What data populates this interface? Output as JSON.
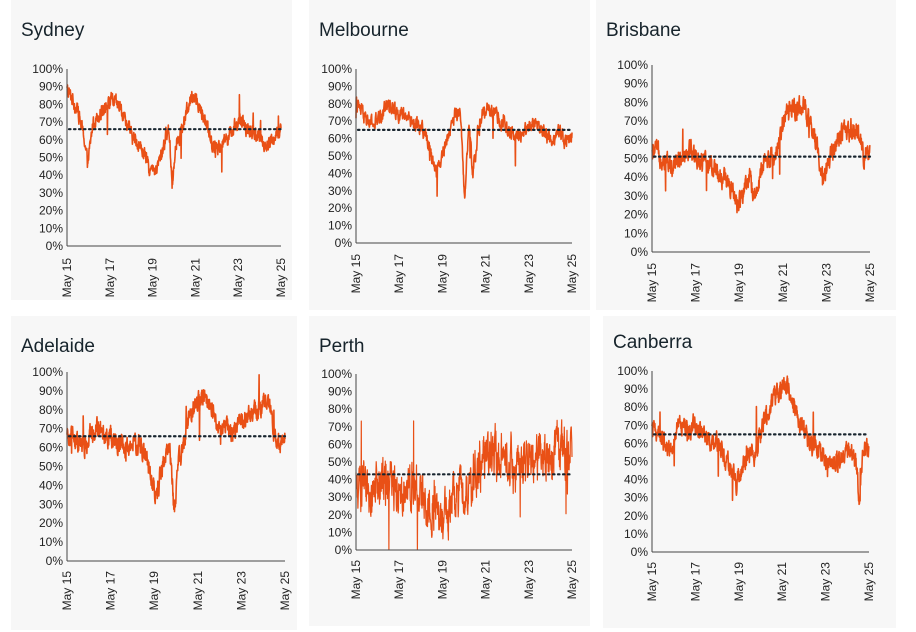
{
  "colors": {
    "series": "#e8470a",
    "series_light": "#f0874a",
    "reference": "#1a2630",
    "axis": "#444444",
    "panel_bg": "#f7f7f7"
  },
  "chart_data": [
    {
      "type": "line",
      "title": "Sydney",
      "ylim": [
        0,
        100
      ],
      "yticks": [
        "0%",
        "10%",
        "20%",
        "30%",
        "40%",
        "50%",
        "60%",
        "70%",
        "80%",
        "90%",
        "100%"
      ],
      "xlim": [
        2015.38,
        2025.38
      ],
      "xticks": [
        "May 15",
        "May 17",
        "May 19",
        "May 21",
        "May 23",
        "May 25"
      ],
      "reference_value": 66,
      "volatility": 3,
      "series": [
        {
          "x": [
            2015.38,
            2015.6,
            2015.9,
            2016.2,
            2016.35,
            2016.6,
            2016.9,
            2017.2,
            2017.5,
            2017.8,
            2018.1,
            2018.4,
            2018.7,
            2019.0,
            2019.2,
            2019.5,
            2019.8,
            2020.0,
            2020.15,
            2020.3,
            2020.45,
            2020.7,
            2020.9,
            2021.1,
            2021.3,
            2021.5,
            2021.7,
            2021.9,
            2022.1,
            2022.3,
            2022.6,
            2022.9,
            2023.2,
            2023.5,
            2023.8,
            2024.1,
            2024.4,
            2024.7,
            2025.0,
            2025.38
          ],
          "values": [
            88,
            84,
            76,
            60,
            46,
            70,
            75,
            80,
            82,
            79,
            72,
            62,
            58,
            52,
            44,
            41,
            52,
            62,
            66,
            34,
            58,
            64,
            72,
            82,
            86,
            80,
            75,
            70,
            60,
            55,
            58,
            62,
            68,
            70,
            66,
            64,
            62,
            56,
            60,
            65
          ]
        }
      ]
    },
    {
      "type": "line",
      "title": "Melbourne",
      "ylim": [
        0,
        100
      ],
      "yticks": [
        "0%",
        "10%",
        "20%",
        "30%",
        "40%",
        "50%",
        "60%",
        "70%",
        "80%",
        "90%",
        "100%"
      ],
      "xlim": [
        2015.38,
        2025.38
      ],
      "xticks": [
        "May 15",
        "May 17",
        "May 19",
        "May 21",
        "May 23",
        "May 25"
      ],
      "reference_value": 65,
      "volatility": 3,
      "series": [
        {
          "x": [
            2015.38,
            2015.6,
            2015.9,
            2016.2,
            2016.5,
            2016.8,
            2017.1,
            2017.4,
            2017.7,
            2018.0,
            2018.3,
            2018.6,
            2018.9,
            2019.1,
            2019.3,
            2019.6,
            2019.9,
            2020.1,
            2020.25,
            2020.4,
            2020.6,
            2020.8,
            2021.0,
            2021.2,
            2021.5,
            2021.8,
            2022.1,
            2022.4,
            2022.7,
            2023.0,
            2023.3,
            2023.6,
            2023.9,
            2024.2,
            2024.5,
            2024.8,
            2025.1,
            2025.38
          ],
          "values": [
            80,
            76,
            70,
            68,
            72,
            80,
            78,
            74,
            72,
            70,
            68,
            62,
            50,
            42,
            48,
            60,
            72,
            75,
            72,
            22,
            66,
            40,
            62,
            72,
            78,
            74,
            70,
            65,
            60,
            62,
            66,
            70,
            65,
            62,
            60,
            64,
            58,
            62
          ]
        }
      ]
    },
    {
      "type": "line",
      "title": "Brisbane",
      "ylim": [
        0,
        100
      ],
      "yticks": [
        "0%",
        "10%",
        "20%",
        "30%",
        "40%",
        "50%",
        "60%",
        "70%",
        "80%",
        "90%",
        "100%"
      ],
      "xlim": [
        2015.38,
        2025.38
      ],
      "xticks": [
        "May 15",
        "May 17",
        "May 19",
        "May 21",
        "May 23",
        "May 25"
      ],
      "reference_value": 51,
      "volatility": 4,
      "series": [
        {
          "x": [
            2015.38,
            2015.6,
            2015.9,
            2016.2,
            2016.5,
            2016.8,
            2017.1,
            2017.4,
            2017.7,
            2018.0,
            2018.3,
            2018.6,
            2018.9,
            2019.1,
            2019.3,
            2019.6,
            2019.9,
            2020.1,
            2020.3,
            2020.5,
            2020.8,
            2021.0,
            2021.2,
            2021.5,
            2021.8,
            2022.0,
            2022.3,
            2022.6,
            2022.9,
            2023.1,
            2023.3,
            2023.6,
            2023.9,
            2024.2,
            2024.5,
            2024.7,
            2024.9,
            2025.1,
            2025.38
          ],
          "values": [
            52,
            54,
            50,
            46,
            50,
            52,
            56,
            50,
            48,
            46,
            44,
            40,
            36,
            30,
            26,
            32,
            40,
            28,
            38,
            46,
            52,
            50,
            60,
            72,
            76,
            78,
            80,
            68,
            58,
            48,
            40,
            54,
            60,
            64,
            62,
            66,
            64,
            50,
            52
          ]
        }
      ]
    },
    {
      "type": "line",
      "title": "Adelaide",
      "ylim": [
        0,
        100
      ],
      "yticks": [
        "0%",
        "10%",
        "20%",
        "30%",
        "40%",
        "50%",
        "60%",
        "70%",
        "80%",
        "90%",
        "100%"
      ],
      "xlim": [
        2015.38,
        2025.38
      ],
      "xticks": [
        "May 15",
        "May 17",
        "May 19",
        "May 21",
        "May 23",
        "May 25"
      ],
      "reference_value": 66,
      "volatility": 4,
      "series": [
        {
          "x": [
            2015.38,
            2015.6,
            2015.9,
            2016.2,
            2016.5,
            2016.8,
            2017.1,
            2017.4,
            2017.7,
            2018.0,
            2018.3,
            2018.6,
            2018.9,
            2019.1,
            2019.3,
            2019.5,
            2019.7,
            2019.9,
            2020.1,
            2020.3,
            2020.5,
            2020.7,
            2020.9,
            2021.1,
            2021.4,
            2021.7,
            2022.0,
            2022.3,
            2022.6,
            2022.9,
            2023.2,
            2023.5,
            2023.8,
            2024.1,
            2024.4,
            2024.7,
            2024.9,
            2025.1,
            2025.38
          ],
          "values": [
            64,
            66,
            62,
            60,
            68,
            70,
            68,
            66,
            62,
            60,
            60,
            62,
            58,
            50,
            40,
            34,
            48,
            55,
            60,
            26,
            52,
            60,
            72,
            80,
            84,
            86,
            80,
            74,
            70,
            68,
            72,
            76,
            78,
            80,
            82,
            80,
            66,
            62,
            64
          ]
        }
      ]
    },
    {
      "type": "line",
      "title": "Perth",
      "ylim": [
        0,
        100
      ],
      "yticks": [
        "0%",
        "10%",
        "20%",
        "30%",
        "40%",
        "50%",
        "60%",
        "70%",
        "80%",
        "90%",
        "100%"
      ],
      "xlim": [
        2015.38,
        2025.38
      ],
      "xticks": [
        "May 15",
        "May 17",
        "May 19",
        "May 21",
        "May 23",
        "May 25"
      ],
      "reference_value": 43,
      "volatility": 10,
      "series": [
        {
          "x": [
            2015.38,
            2015.7,
            2016.0,
            2016.3,
            2016.6,
            2016.9,
            2017.2,
            2017.5,
            2017.8,
            2018.1,
            2018.4,
            2018.7,
            2019.0,
            2019.3,
            2019.6,
            2019.9,
            2020.2,
            2020.5,
            2020.8,
            2021.1,
            2021.4,
            2021.7,
            2022.0,
            2022.3,
            2022.6,
            2022.9,
            2023.2,
            2023.5,
            2023.8,
            2024.1,
            2024.4,
            2024.7,
            2025.0,
            2025.38
          ],
          "values": [
            36,
            34,
            30,
            36,
            40,
            38,
            36,
            34,
            38,
            40,
            30,
            26,
            24,
            22,
            20,
            28,
            36,
            34,
            40,
            46,
            54,
            58,
            56,
            52,
            48,
            44,
            46,
            50,
            52,
            54,
            56,
            58,
            56,
            58
          ]
        }
      ]
    },
    {
      "type": "line",
      "title": "Canberra",
      "ylim": [
        0,
        100
      ],
      "yticks": [
        "0%",
        "10%",
        "20%",
        "30%",
        "40%",
        "50%",
        "60%",
        "70%",
        "80%",
        "90%",
        "100%"
      ],
      "xlim": [
        2015.38,
        2025.38
      ],
      "xticks": [
        "May 15",
        "May 17",
        "May 19",
        "May 21",
        "May 23",
        "May 25"
      ],
      "reference_value": 65,
      "volatility": 4,
      "series": [
        {
          "x": [
            2015.38,
            2015.6,
            2015.9,
            2016.2,
            2016.5,
            2016.8,
            2017.1,
            2017.4,
            2017.7,
            2018.0,
            2018.3,
            2018.6,
            2018.9,
            2019.1,
            2019.3,
            2019.6,
            2019.9,
            2020.1,
            2020.3,
            2020.5,
            2020.8,
            2021.0,
            2021.2,
            2021.5,
            2021.8,
            2022.0,
            2022.3,
            2022.6,
            2022.9,
            2023.2,
            2023.5,
            2023.8,
            2024.1,
            2024.4,
            2024.6,
            2024.8,
            2024.95,
            2025.1,
            2025.38
          ],
          "values": [
            66,
            68,
            62,
            58,
            66,
            70,
            68,
            70,
            66,
            62,
            60,
            56,
            50,
            42,
            38,
            48,
            56,
            52,
            62,
            70,
            78,
            84,
            88,
            92,
            88,
            78,
            70,
            62,
            58,
            54,
            50,
            48,
            52,
            56,
            54,
            48,
            24,
            60,
            56
          ]
        }
      ]
    }
  ]
}
